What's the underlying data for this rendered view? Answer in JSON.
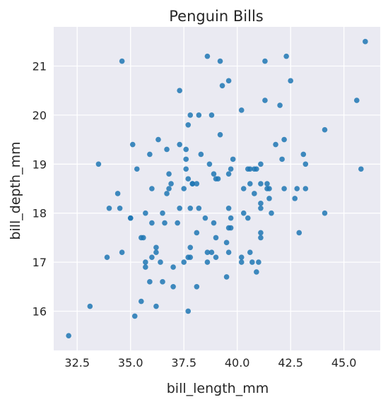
{
  "chart_data": {
    "type": "scatter",
    "title": "Penguin Bills",
    "xlabel": "bill_length_mm",
    "ylabel": "bill_depth_mm",
    "xlim": [
      31.4,
      46.7
    ],
    "ylim": [
      15.2,
      21.8
    ],
    "xticks": [
      32.5,
      35.0,
      37.5,
      40.0,
      42.5,
      45.0
    ],
    "xtick_labels": [
      "32.5",
      "35.0",
      "37.5",
      "40.0",
      "42.5",
      "45.0"
    ],
    "yticks": [
      16,
      17,
      18,
      19,
      20,
      21
    ],
    "ytick_labels": [
      "16",
      "17",
      "18",
      "19",
      "20",
      "21"
    ],
    "grid": true,
    "background": "#eaeaf2",
    "point_color": "#1f77b4",
    "points": [
      [
        32.1,
        15.5
      ],
      [
        33.1,
        16.1
      ],
      [
        33.5,
        19.0
      ],
      [
        33.9,
        17.1
      ],
      [
        34.0,
        18.1
      ],
      [
        34.4,
        18.4
      ],
      [
        34.5,
        18.1
      ],
      [
        34.6,
        17.2
      ],
      [
        34.6,
        21.1
      ],
      [
        35.0,
        17.9
      ],
      [
        35.0,
        17.9
      ],
      [
        35.1,
        19.4
      ],
      [
        35.2,
        15.9
      ],
      [
        35.3,
        18.9
      ],
      [
        35.5,
        16.2
      ],
      [
        35.5,
        17.5
      ],
      [
        35.6,
        17.5
      ],
      [
        35.7,
        16.9
      ],
      [
        35.7,
        17.0
      ],
      [
        35.7,
        18.0
      ],
      [
        35.9,
        16.6
      ],
      [
        35.9,
        19.2
      ],
      [
        36.0,
        17.1
      ],
      [
        36.0,
        17.8
      ],
      [
        36.0,
        18.5
      ],
      [
        36.2,
        16.1
      ],
      [
        36.2,
        17.2
      ],
      [
        36.2,
        17.3
      ],
      [
        36.3,
        19.5
      ],
      [
        36.4,
        17.0
      ],
      [
        36.5,
        16.6
      ],
      [
        36.5,
        18.0
      ],
      [
        36.6,
        17.8
      ],
      [
        36.7,
        18.4
      ],
      [
        36.7,
        19.3
      ],
      [
        36.8,
        18.5
      ],
      [
        36.8,
        18.8
      ],
      [
        36.9,
        18.6
      ],
      [
        37.0,
        16.9
      ],
      [
        37.0,
        16.5
      ],
      [
        37.2,
        17.8
      ],
      [
        37.3,
        19.4
      ],
      [
        37.3,
        18.1
      ],
      [
        37.3,
        20.5
      ],
      [
        37.5,
        17.0
      ],
      [
        37.5,
        18.5
      ],
      [
        37.6,
        18.9
      ],
      [
        37.6,
        19.1
      ],
      [
        37.6,
        19.3
      ],
      [
        37.7,
        16.0
      ],
      [
        37.7,
        17.1
      ],
      [
        37.7,
        18.7
      ],
      [
        37.7,
        19.8
      ],
      [
        37.8,
        17.1
      ],
      [
        37.8,
        17.3
      ],
      [
        37.8,
        18.1
      ],
      [
        37.8,
        20.0
      ],
      [
        37.9,
        18.6
      ],
      [
        37.9,
        18.6
      ],
      [
        38.1,
        16.5
      ],
      [
        38.1,
        17.6
      ],
      [
        38.1,
        18.6
      ],
      [
        38.2,
        18.1
      ],
      [
        38.2,
        20.0
      ],
      [
        38.3,
        19.2
      ],
      [
        38.5,
        17.9
      ],
      [
        38.6,
        17.0
      ],
      [
        38.6,
        17.2
      ],
      [
        38.6,
        21.2
      ],
      [
        38.7,
        19.0
      ],
      [
        38.8,
        17.2
      ],
      [
        38.8,
        20.0
      ],
      [
        38.9,
        17.8
      ],
      [
        38.9,
        18.8
      ],
      [
        39.0,
        17.1
      ],
      [
        39.0,
        17.5
      ],
      [
        39.0,
        18.7
      ],
      [
        39.1,
        18.7
      ],
      [
        39.2,
        19.6
      ],
      [
        39.2,
        21.1
      ],
      [
        39.3,
        20.6
      ],
      [
        39.5,
        16.7
      ],
      [
        39.5,
        17.4
      ],
      [
        39.6,
        17.2
      ],
      [
        39.6,
        17.7
      ],
      [
        39.6,
        18.1
      ],
      [
        39.6,
        18.8
      ],
      [
        39.6,
        20.7
      ],
      [
        39.7,
        17.7
      ],
      [
        39.7,
        17.9
      ],
      [
        39.7,
        18.9
      ],
      [
        39.8,
        19.1
      ],
      [
        40.2,
        17.0
      ],
      [
        40.2,
        17.1
      ],
      [
        40.2,
        20.1
      ],
      [
        40.3,
        18.0
      ],
      [
        40.3,
        18.5
      ],
      [
        40.5,
        17.9
      ],
      [
        40.5,
        18.9
      ],
      [
        40.6,
        17.2
      ],
      [
        40.6,
        18.6
      ],
      [
        40.6,
        18.9
      ],
      [
        40.7,
        17.0
      ],
      [
        40.8,
        18.4
      ],
      [
        40.8,
        18.9
      ],
      [
        40.9,
        16.8
      ],
      [
        40.9,
        18.9
      ],
      [
        41.0,
        17.0
      ],
      [
        41.1,
        17.5
      ],
      [
        41.1,
        17.6
      ],
      [
        41.1,
        18.1
      ],
      [
        41.1,
        18.2
      ],
      [
        41.1,
        18.6
      ],
      [
        41.1,
        19.0
      ],
      [
        41.3,
        20.3
      ],
      [
        41.3,
        21.1
      ],
      [
        41.4,
        18.5
      ],
      [
        41.4,
        18.6
      ],
      [
        41.5,
        18.3
      ],
      [
        41.5,
        18.5
      ],
      [
        41.6,
        18.0
      ],
      [
        41.8,
        19.4
      ],
      [
        42.0,
        20.2
      ],
      [
        42.1,
        19.1
      ],
      [
        42.2,
        18.5
      ],
      [
        42.2,
        19.5
      ],
      [
        42.3,
        21.2
      ],
      [
        42.5,
        20.7
      ],
      [
        42.7,
        18.3
      ],
      [
        42.8,
        18.5
      ],
      [
        42.9,
        17.6
      ],
      [
        43.1,
        19.2
      ],
      [
        43.2,
        18.5
      ],
      [
        43.2,
        19.0
      ],
      [
        44.1,
        18.0
      ],
      [
        44.1,
        19.7
      ],
      [
        45.6,
        20.3
      ],
      [
        45.8,
        18.9
      ],
      [
        46.0,
        21.5
      ]
    ]
  }
}
